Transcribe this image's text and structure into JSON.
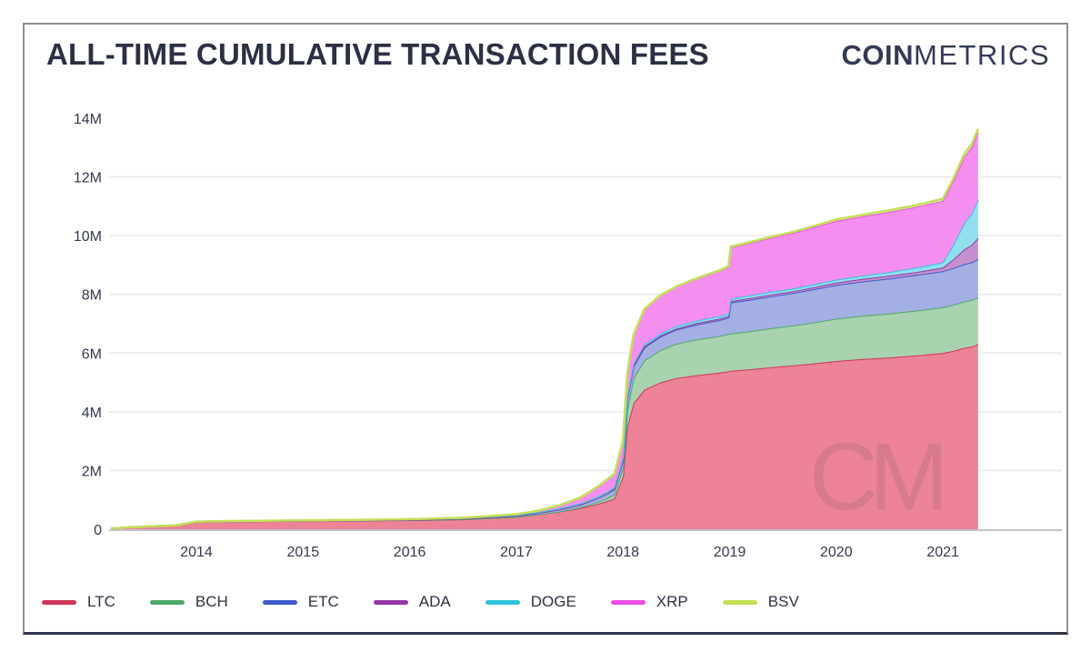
{
  "header": {
    "title": "ALL-TIME CUMULATIVE TRANSACTION FEES",
    "brand_bold": "COIN",
    "brand_light": "METRICS"
  },
  "watermark": "CM",
  "colors": {
    "title_text": "#2b3044",
    "axis_text": "#33384e",
    "gridline": "#ededf2",
    "baseline": "#c4c0c8"
  },
  "chart_data": {
    "type": "area",
    "stacked": true,
    "title": "ALL-TIME CUMULATIVE TRANSACTION FEES",
    "xlabel": "",
    "ylabel": "",
    "ylim": [
      0,
      14000000
    ],
    "grid": "horizontal",
    "legend_position": "bottom-left",
    "yticks": [
      {
        "value": 0,
        "label": "0"
      },
      {
        "value": 2,
        "label": "2M"
      },
      {
        "value": 4,
        "label": "4M"
      },
      {
        "value": 6,
        "label": "6M"
      },
      {
        "value": 8,
        "label": "8M"
      },
      {
        "value": 10,
        "label": "10M"
      },
      {
        "value": 12,
        "label": "12M"
      },
      {
        "value": 14,
        "label": "14M"
      }
    ],
    "xticks": [
      {
        "value": 2014,
        "label": "2014"
      },
      {
        "value": 2015,
        "label": "2015"
      },
      {
        "value": 2016,
        "label": "2016"
      },
      {
        "value": 2017,
        "label": "2017"
      },
      {
        "value": 2018,
        "label": "2018"
      },
      {
        "value": 2019,
        "label": "2019"
      },
      {
        "value": 2020,
        "label": "2020"
      },
      {
        "value": 2021,
        "label": "2021"
      }
    ],
    "x_years": [
      2013.2,
      2013.5,
      2013.8,
      2014.0,
      2014.3,
      2014.7,
      2015.0,
      2015.5,
      2016.0,
      2016.5,
      2017.0,
      2017.2,
      2017.4,
      2017.6,
      2017.75,
      2017.85,
      2017.92,
      2018.0,
      2018.04,
      2018.1,
      2018.2,
      2018.35,
      2018.5,
      2018.7,
      2018.9,
      2018.99,
      2019.01,
      2019.2,
      2019.4,
      2019.6,
      2019.8,
      2020.0,
      2020.25,
      2020.5,
      2020.75,
      2021.0,
      2021.1,
      2021.2,
      2021.27,
      2021.33
    ],
    "unit": "M",
    "series": [
      {
        "name": "LTC",
        "line_color": "#d13459",
        "fill_color": "#ec8397",
        "values_M": [
          0.03,
          0.09,
          0.13,
          0.25,
          0.27,
          0.28,
          0.29,
          0.3,
          0.31,
          0.34,
          0.42,
          0.5,
          0.6,
          0.72,
          0.85,
          0.95,
          1.05,
          1.8,
          3.5,
          4.3,
          4.75,
          5.0,
          5.15,
          5.25,
          5.33,
          5.38,
          5.4,
          5.45,
          5.52,
          5.58,
          5.65,
          5.73,
          5.8,
          5.85,
          5.92,
          6.0,
          6.08,
          6.18,
          6.22,
          6.3
        ]
      },
      {
        "name": "BCH",
        "line_color": "#4fa967",
        "fill_color": "#a9d2ae",
        "values_M": [
          0,
          0,
          0,
          0,
          0,
          0,
          0,
          0,
          0,
          0,
          0,
          0,
          0,
          0.02,
          0.06,
          0.1,
          0.14,
          0.3,
          0.6,
          0.85,
          1.0,
          1.1,
          1.17,
          1.22,
          1.25,
          1.27,
          1.27,
          1.3,
          1.33,
          1.36,
          1.4,
          1.44,
          1.47,
          1.5,
          1.53,
          1.56,
          1.57,
          1.58,
          1.59,
          1.6
        ]
      },
      {
        "name": "ETC",
        "line_color": "#3d5ac6",
        "fill_color": "#a4afe4",
        "values_M": [
          0,
          0,
          0,
          0,
          0,
          0,
          0,
          0,
          0.01,
          0.02,
          0.04,
          0.05,
          0.07,
          0.1,
          0.13,
          0.16,
          0.18,
          0.25,
          0.33,
          0.4,
          0.44,
          0.46,
          0.48,
          0.51,
          0.54,
          0.56,
          1.05,
          1.07,
          1.09,
          1.11,
          1.13,
          1.15,
          1.17,
          1.19,
          1.21,
          1.23,
          1.25,
          1.27,
          1.28,
          1.3
        ]
      },
      {
        "name": "ADA",
        "line_color": "#9338a5",
        "fill_color": "#c490ce",
        "values_M": [
          0,
          0,
          0,
          0,
          0,
          0,
          0,
          0,
          0,
          0,
          0,
          0,
          0,
          0,
          0,
          0.01,
          0.02,
          0.02,
          0.02,
          0.03,
          0.04,
          0.04,
          0.04,
          0.05,
          0.05,
          0.05,
          0.05,
          0.06,
          0.06,
          0.06,
          0.07,
          0.08,
          0.09,
          0.1,
          0.1,
          0.12,
          0.3,
          0.5,
          0.6,
          0.72
        ]
      },
      {
        "name": "DOGE",
        "line_color": "#2fc4dc",
        "fill_color": "#90e0ee",
        "values_M": [
          0,
          0,
          0,
          0.01,
          0.01,
          0.01,
          0.01,
          0.02,
          0.02,
          0.02,
          0.03,
          0.03,
          0.04,
          0.04,
          0.05,
          0.05,
          0.05,
          0.06,
          0.06,
          0.06,
          0.07,
          0.07,
          0.08,
          0.08,
          0.08,
          0.08,
          0.08,
          0.09,
          0.09,
          0.09,
          0.1,
          0.1,
          0.11,
          0.12,
          0.15,
          0.18,
          0.5,
          0.9,
          1.05,
          1.3
        ]
      },
      {
        "name": "XRP",
        "line_color": "#e94fe3",
        "fill_color": "#f48ff0",
        "values_M": [
          0,
          0,
          0,
          0,
          0,
          0,
          0,
          0,
          0,
          0.01,
          0.02,
          0.05,
          0.1,
          0.2,
          0.33,
          0.42,
          0.45,
          0.6,
          0.8,
          1.0,
          1.2,
          1.3,
          1.35,
          1.45,
          1.55,
          1.6,
          1.75,
          1.8,
          1.85,
          1.9,
          1.95,
          2.0,
          2.02,
          2.05,
          2.07,
          2.1,
          2.18,
          2.25,
          2.28,
          2.3
        ]
      },
      {
        "name": "BSV",
        "line_color": "#c3e156",
        "fill_color": "#e2f0a6",
        "values_M": [
          0,
          0,
          0,
          0,
          0,
          0,
          0,
          0,
          0,
          0,
          0,
          0,
          0,
          0,
          0,
          0,
          0,
          0,
          0,
          0,
          0,
          0,
          0,
          0,
          0.01,
          0.02,
          0.02,
          0.02,
          0.03,
          0.03,
          0.04,
          0.05,
          0.05,
          0.06,
          0.06,
          0.07,
          0.08,
          0.1,
          0.11,
          0.12
        ]
      }
    ]
  }
}
